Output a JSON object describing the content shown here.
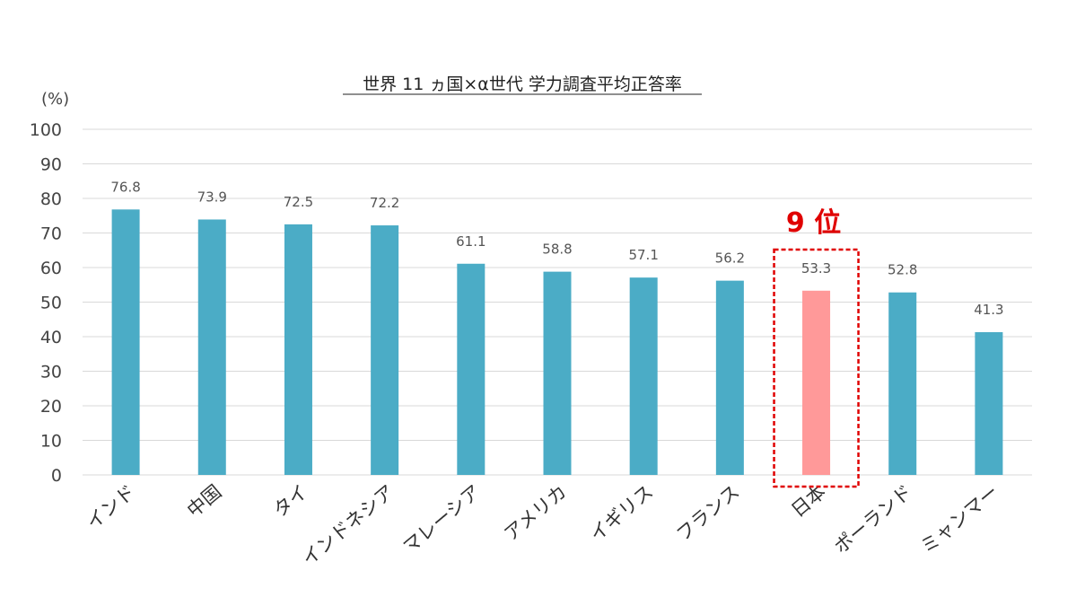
{
  "chart_data": {
    "type": "bar",
    "title": "世界 11 ヵ国×α世代  学力調査平均正答率",
    "ylabel": "(%)",
    "ylim": [
      0,
      100
    ],
    "yticks": [
      0,
      10,
      20,
      30,
      40,
      50,
      60,
      70,
      80,
      90,
      100
    ],
    "grid": true,
    "categories": [
      "インド",
      "中国",
      "タイ",
      "インドネシア",
      "マレーシア",
      "アメリカ",
      "イギリス",
      "フランス",
      "日本",
      "ポーランド",
      "ミャンマー"
    ],
    "values": [
      76.8,
      73.9,
      72.5,
      72.2,
      61.1,
      58.8,
      57.1,
      56.2,
      53.3,
      52.8,
      41.3
    ],
    "data_labels": [
      "76.8",
      "73.9",
      "72.5",
      "72.2",
      "61.1",
      "58.8",
      "57.1",
      "56.2",
      "53.3",
      "52.8",
      "41.3"
    ],
    "colors": {
      "bar": "#4bacc6",
      "highlight_bar": "#ff9999",
      "callout": "#e00000"
    },
    "highlight": {
      "category": "日本",
      "label": "9 位"
    }
  }
}
